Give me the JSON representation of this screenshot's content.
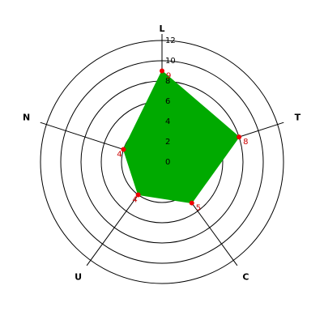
{
  "chart_data": {
    "type": "radar",
    "categories": [
      "L",
      "T",
      "C",
      "U",
      "N"
    ],
    "values": [
      9,
      8,
      5,
      4,
      4
    ],
    "color": "#00aa00",
    "marker_color": "#ee0000",
    "label_color": "#cc0000",
    "ylim": [
      0,
      12
    ],
    "yticks": [
      0,
      2,
      4,
      6,
      8,
      10,
      12
    ],
    "grid": true
  }
}
